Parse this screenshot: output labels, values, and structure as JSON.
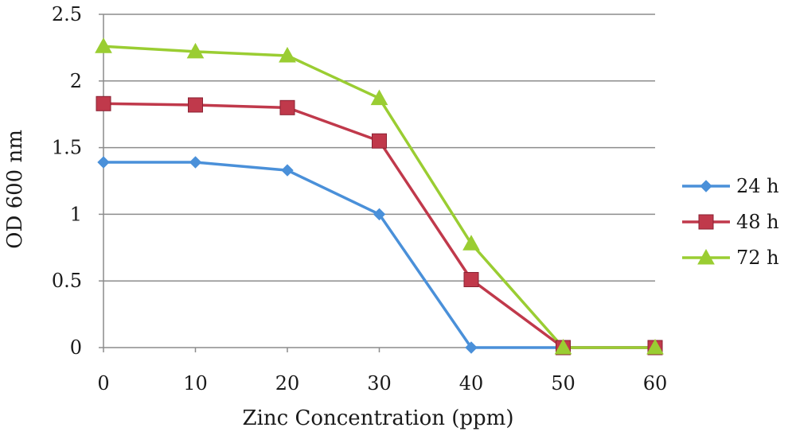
{
  "chart_data": {
    "type": "line",
    "xlabel": "Zinc Concentration (ppm)",
    "ylabel": "OD 600 nm",
    "x": [
      0,
      10,
      20,
      30,
      40,
      50,
      60
    ],
    "x_tick_labels": [
      "0",
      "10",
      "20",
      "30",
      "40",
      "50",
      "60"
    ],
    "y_tick_labels": [
      "0",
      "0.5",
      "1",
      "1.5",
      "2",
      "2.5"
    ],
    "xlim": [
      0,
      60
    ],
    "ylim": [
      0,
      2.5
    ],
    "grid": "horizontal",
    "legend_position": "right",
    "series": [
      {
        "name": "24 h",
        "color": "#4a90d9",
        "marker": "diamond",
        "values": [
          1.39,
          1.39,
          1.33,
          1.0,
          0.0,
          0.0,
          0.0
        ]
      },
      {
        "name": "48 h",
        "color": "#c0394b",
        "marker": "square",
        "values": [
          1.83,
          1.82,
          1.8,
          1.55,
          0.51,
          0.0,
          0.0
        ]
      },
      {
        "name": "72 h",
        "color": "#9acd32",
        "marker": "triangle",
        "values": [
          2.26,
          2.22,
          2.19,
          1.87,
          0.78,
          0.0,
          0.0
        ]
      }
    ]
  }
}
